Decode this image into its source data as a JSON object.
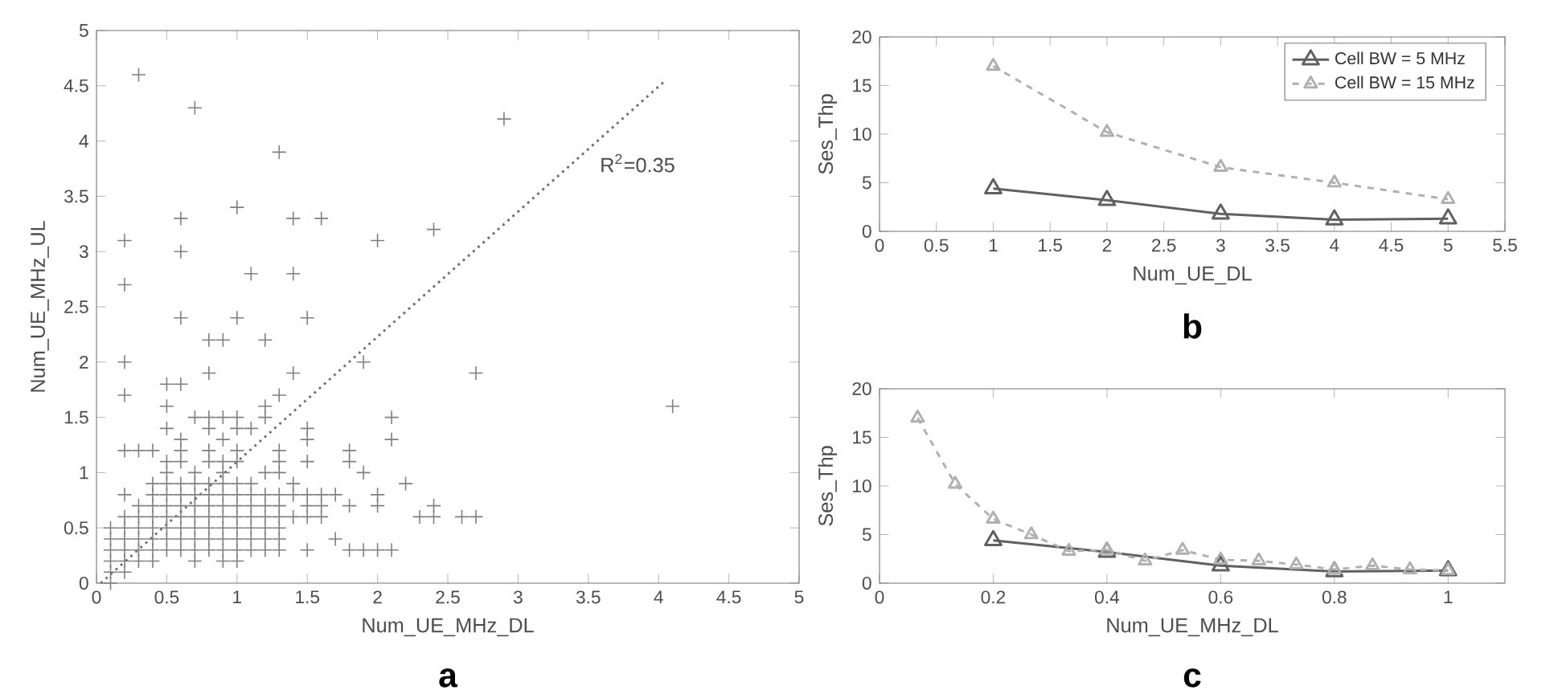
{
  "chart_data": [
    {
      "type": "scatter",
      "xlabel": "Num_UE_MHz_DL",
      "ylabel": "Num_UE_MHz_UL",
      "xlim": [
        0,
        5
      ],
      "ylim": [
        0,
        5
      ],
      "xticks": [
        0,
        0.5,
        1,
        1.5,
        2,
        2.5,
        3,
        3.5,
        4,
        4.5,
        5
      ],
      "yticks": [
        0,
        0.5,
        1,
        1.5,
        2,
        2.5,
        3,
        3.5,
        4,
        4.5,
        5
      ],
      "annotations": [
        "R$^{2}$=0.35",
        "a"
      ],
      "series": [
        {
          "color": "#808080",
          "marker": "cross",
          "x": [
            0.3,
            0.7,
            1.3,
            2.9,
            0.6,
            1.0,
            1.4,
            1.6,
            0.2,
            0.6,
            2.0,
            2.4,
            0.2,
            1.1,
            1.4,
            0.6,
            1.0,
            1.5,
            0.8,
            0.9,
            1.2,
            0.2,
            1.9,
            0.8,
            1.4,
            2.7,
            0.2,
            1.3,
            4.1,
            0.5,
            0.6,
            0.5,
            1.2,
            0.5,
            0.7,
            0.8,
            0.9,
            1.0,
            0.8,
            1.0,
            1.1,
            1.2,
            2.1,
            1.5,
            0.6,
            0.9,
            1.5,
            2.1,
            0.2,
            0.3,
            0.4,
            0.6,
            0.8,
            1.0,
            1.3,
            1.8,
            0.5,
            0.6,
            0.8,
            0.9,
            1.0,
            1.3,
            1.5,
            1.8,
            0.5,
            0.7,
            0.9,
            1.2,
            1.3,
            1.9,
            2.2,
            2.4,
            2.0,
            2.0,
            0.4,
            0.5,
            0.6,
            0.7,
            0.8,
            0.9,
            1.0,
            1.1,
            1.4,
            0.2,
            0.4,
            0.5,
            0.6,
            0.7,
            0.8,
            0.9,
            1.0,
            1.1,
            1.2,
            1.3,
            1.4,
            1.5,
            1.6,
            1.7,
            0.3,
            0.4,
            0.5,
            0.6,
            0.7,
            0.8,
            0.9,
            1.0,
            1.1,
            1.2,
            1.3,
            1.5,
            1.6,
            1.8,
            0.2,
            0.3,
            0.4,
            0.5,
            0.6,
            0.7,
            0.8,
            0.9,
            1.0,
            1.1,
            1.2,
            1.3,
            1.4,
            1.5,
            1.6,
            2.3,
            2.4,
            2.6,
            2.7,
            0.1,
            0.2,
            0.3,
            0.4,
            0.5,
            0.6,
            0.7,
            0.8,
            0.9,
            1.0,
            1.1,
            1.2,
            1.3,
            0.1,
            0.2,
            0.3,
            0.4,
            0.5,
            0.6,
            0.7,
            0.8,
            0.9,
            1.0,
            1.1,
            1.2,
            1.3,
            1.7,
            0.1,
            0.2,
            0.3,
            0.4,
            0.5,
            0.6,
            0.7,
            0.8,
            0.9,
            1.0,
            1.1,
            1.2,
            1.3,
            1.5,
            1.8,
            1.9,
            2.0,
            2.1,
            0.1,
            0.2,
            0.3,
            0.4,
            0.7,
            0.9,
            1.0,
            0.1,
            0.2,
            0.1
          ],
          "values": [
            4.6,
            4.3,
            3.9,
            4.2,
            3.3,
            3.4,
            3.3,
            3.3,
            3.1,
            3.0,
            3.1,
            3.2,
            2.7,
            2.8,
            2.8,
            2.4,
            2.4,
            2.4,
            2.2,
            2.2,
            2.2,
            2.0,
            2.0,
            1.9,
            1.9,
            1.9,
            1.7,
            1.7,
            1.6,
            1.8,
            1.8,
            1.6,
            1.6,
            1.4,
            1.5,
            1.5,
            1.5,
            1.5,
            1.4,
            1.4,
            1.4,
            1.5,
            1.5,
            1.4,
            1.3,
            1.3,
            1.3,
            1.3,
            1.2,
            1.2,
            1.2,
            1.2,
            1.2,
            1.2,
            1.2,
            1.2,
            1.1,
            1.1,
            1.1,
            1.1,
            1.1,
            1.1,
            1.1,
            1.1,
            1.0,
            1.0,
            1.0,
            1.0,
            1.0,
            1.0,
            0.9,
            0.7,
            0.8,
            0.7,
            0.9,
            0.9,
            0.9,
            0.9,
            0.9,
            0.9,
            0.9,
            0.9,
            0.9,
            0.8,
            0.8,
            0.8,
            0.8,
            0.8,
            0.8,
            0.8,
            0.8,
            0.8,
            0.8,
            0.8,
            0.8,
            0.8,
            0.8,
            0.8,
            0.7,
            0.7,
            0.7,
            0.7,
            0.7,
            0.7,
            0.7,
            0.7,
            0.7,
            0.7,
            0.7,
            0.7,
            0.7,
            0.7,
            0.6,
            0.6,
            0.6,
            0.6,
            0.6,
            0.6,
            0.6,
            0.6,
            0.6,
            0.6,
            0.6,
            0.6,
            0.6,
            0.6,
            0.6,
            0.6,
            0.6,
            0.6,
            0.6,
            0.5,
            0.5,
            0.5,
            0.5,
            0.5,
            0.5,
            0.5,
            0.5,
            0.5,
            0.5,
            0.5,
            0.5,
            0.5,
            0.4,
            0.4,
            0.4,
            0.4,
            0.4,
            0.4,
            0.4,
            0.4,
            0.4,
            0.4,
            0.4,
            0.4,
            0.4,
            0.4,
            0.3,
            0.3,
            0.3,
            0.3,
            0.3,
            0.3,
            0.3,
            0.3,
            0.3,
            0.3,
            0.3,
            0.3,
            0.3,
            0.3,
            0.3,
            0.3,
            0.3,
            0.3,
            0.2,
            0.2,
            0.2,
            0.2,
            0.2,
            0.2,
            0.2,
            0.1,
            0.1,
            0.0
          ]
        },
        {
          "type": "line",
          "color": "#707070",
          "marker": "none",
          "line_style": "dotted",
          "x": [
            0.03,
            4.05
          ],
          "values": [
            0.0,
            4.55
          ]
        }
      ]
    },
    {
      "type": "line",
      "xlabel": "Num_UE_DL",
      "ylabel": "Ses_Thp",
      "xlim": [
        0,
        5.5
      ],
      "ylim": [
        0,
        20
      ],
      "xticks": [
        0,
        0.5,
        1,
        1.5,
        2,
        2.5,
        3,
        3.5,
        4,
        4.5,
        5,
        5.5
      ],
      "yticks": [
        0,
        5,
        10,
        15,
        20
      ],
      "marker": "triangle",
      "legend": "top right",
      "annotations": [
        "b"
      ],
      "x": [
        1,
        2,
        3,
        4,
        5
      ],
      "series": [
        {
          "name": "Cell BW = 5 MHz",
          "color": "#606060",
          "line_style": "solid",
          "values": [
            4.4,
            3.2,
            1.8,
            1.2,
            1.3
          ]
        },
        {
          "name": "Cell BW = 15 MHz",
          "color": "#b0b0b0",
          "line_style": "dashed",
          "values": [
            17,
            10.2,
            6.6,
            5.0,
            3.3
          ]
        }
      ]
    },
    {
      "type": "line",
      "xlabel": "Num_UE_MHz_DL",
      "ylabel": "Ses_Thp",
      "xlim": [
        0,
        1.1
      ],
      "ylim": [
        0,
        20
      ],
      "xticks": [
        0,
        0.2,
        0.4,
        0.6,
        0.8,
        1
      ],
      "yticks": [
        0,
        5,
        10,
        15,
        20
      ],
      "marker": "triangle",
      "annotations": [
        "c"
      ],
      "series": [
        {
          "color": "#606060",
          "line_style": "solid",
          "x": [
            0.2,
            0.4,
            0.6,
            0.8,
            1.0
          ],
          "values": [
            4.4,
            3.2,
            1.8,
            1.2,
            1.3
          ]
        },
        {
          "color": "#b0b0b0",
          "line_style": "dashed",
          "x": [
            0.067,
            0.133,
            0.2,
            0.267,
            0.333,
            0.4,
            0.467,
            0.533,
            0.6,
            0.667,
            0.733,
            0.8,
            0.867,
            0.933,
            1.0
          ],
          "values": [
            17,
            10.2,
            6.6,
            5.0,
            3.3,
            3.4,
            2.3,
            3.4,
            2.4,
            2.3,
            1.9,
            1.4,
            1.8,
            1.4,
            1.3
          ]
        }
      ]
    }
  ]
}
